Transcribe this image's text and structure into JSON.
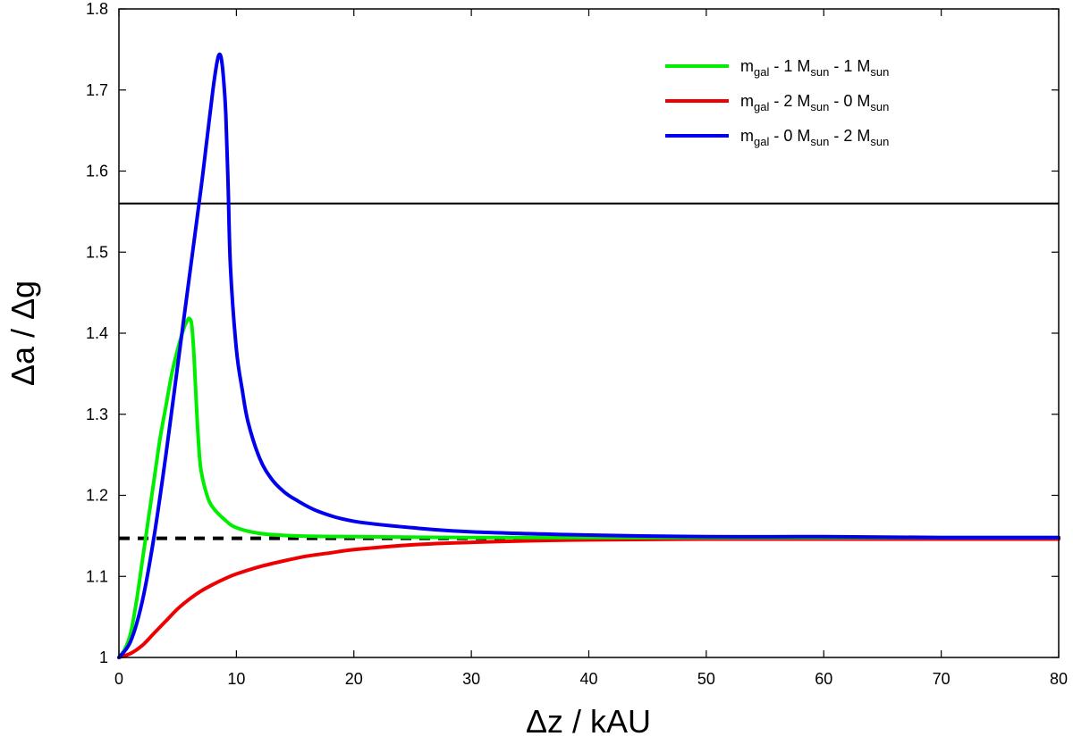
{
  "chart_data": {
    "type": "line",
    "title": "",
    "xlabel": "Δz / kAU",
    "ylabel": "Δa / Δg",
    "xlim": [
      0,
      80
    ],
    "ylim": [
      1.0,
      1.8
    ],
    "xticks": [
      0,
      10,
      20,
      30,
      40,
      50,
      60,
      70,
      80
    ],
    "xtick_labels": [
      "0",
      "10",
      "20",
      "30",
      "40",
      "50",
      "60",
      "70",
      "80"
    ],
    "yticks": [
      1.0,
      1.1,
      1.2,
      1.3,
      1.4,
      1.5,
      1.6,
      1.7,
      1.8
    ],
    "ytick_labels": [
      "1",
      "1.1",
      "1.2",
      "1.3",
      "1.4",
      "1.5",
      "1.6",
      "1.7",
      "1.8"
    ],
    "grid": false,
    "legend_position": "top-right",
    "series": [
      {
        "name": "m_gal - 1 M_sun - 1 M_sun",
        "legend": {
          "m": "m",
          "gal": "gal",
          "mid": " - 1 M",
          "sun1": "sun",
          "mid2": " - 1 M",
          "sun2": "sun"
        },
        "color": "#00ee00",
        "x": [
          0,
          0.5,
          1,
          1.5,
          2,
          2.5,
          3,
          3.5,
          4,
          4.5,
          5,
          5.5,
          5.8,
          6.0,
          6.2,
          6.4,
          6.6,
          6.8,
          7,
          7.5,
          8,
          9,
          10,
          12,
          15,
          20,
          30,
          40,
          50,
          60,
          70,
          80
        ],
        "y": [
          1.0,
          1.01,
          1.03,
          1.07,
          1.12,
          1.17,
          1.22,
          1.27,
          1.31,
          1.35,
          1.38,
          1.405,
          1.415,
          1.418,
          1.41,
          1.37,
          1.31,
          1.26,
          1.23,
          1.2,
          1.185,
          1.17,
          1.16,
          1.153,
          1.15,
          1.149,
          1.148,
          1.148,
          1.148,
          1.148,
          1.148,
          1.148
        ]
      },
      {
        "name": "m_gal - 2 M_sun - 0 M_sun",
        "legend": {
          "m": "m",
          "gal": "gal",
          "mid": " - 2 M",
          "sun1": "sun",
          "mid2": " - 0 M",
          "sun2": "sun"
        },
        "color": "#ee0000",
        "x": [
          0,
          1,
          2,
          3,
          4,
          5,
          6,
          7,
          8,
          9,
          10,
          12,
          14,
          16,
          18,
          20,
          25,
          30,
          35,
          40,
          50,
          60,
          70,
          80
        ],
        "y": [
          1.0,
          1.005,
          1.015,
          1.03,
          1.045,
          1.06,
          1.072,
          1.082,
          1.09,
          1.097,
          1.103,
          1.112,
          1.119,
          1.125,
          1.129,
          1.133,
          1.139,
          1.142,
          1.144,
          1.145,
          1.146,
          1.146,
          1.146,
          1.146
        ]
      },
      {
        "name": "m_gal - 0 M_sun - 2 M_sun",
        "legend": {
          "m": "m",
          "gal": "gal",
          "mid": " - 0 M",
          "sun1": "sun",
          "mid2": " - 2 M",
          "sun2": "sun"
        },
        "color": "#0000ee",
        "x": [
          0,
          1,
          2,
          3,
          4,
          5,
          6,
          7,
          7.5,
          8,
          8.3,
          8.5,
          8.7,
          8.9,
          9.1,
          9.3,
          9.5,
          10,
          10.5,
          11,
          12,
          13,
          14,
          15,
          17,
          20,
          25,
          30,
          40,
          50,
          60,
          70,
          80
        ],
        "y": [
          1.0,
          1.02,
          1.07,
          1.15,
          1.25,
          1.36,
          1.47,
          1.58,
          1.64,
          1.7,
          1.73,
          1.743,
          1.74,
          1.715,
          1.67,
          1.58,
          1.48,
          1.38,
          1.33,
          1.29,
          1.245,
          1.22,
          1.205,
          1.195,
          1.18,
          1.168,
          1.16,
          1.155,
          1.151,
          1.149,
          1.149,
          1.148,
          1.148
        ]
      }
    ],
    "reference_lines": [
      {
        "name": "upper-horizontal-line",
        "y": 1.56,
        "style": "solid",
        "color": "#000000"
      },
      {
        "name": "asymptote-line",
        "y": 1.147,
        "style": "dashed",
        "color": "#000000"
      }
    ]
  }
}
